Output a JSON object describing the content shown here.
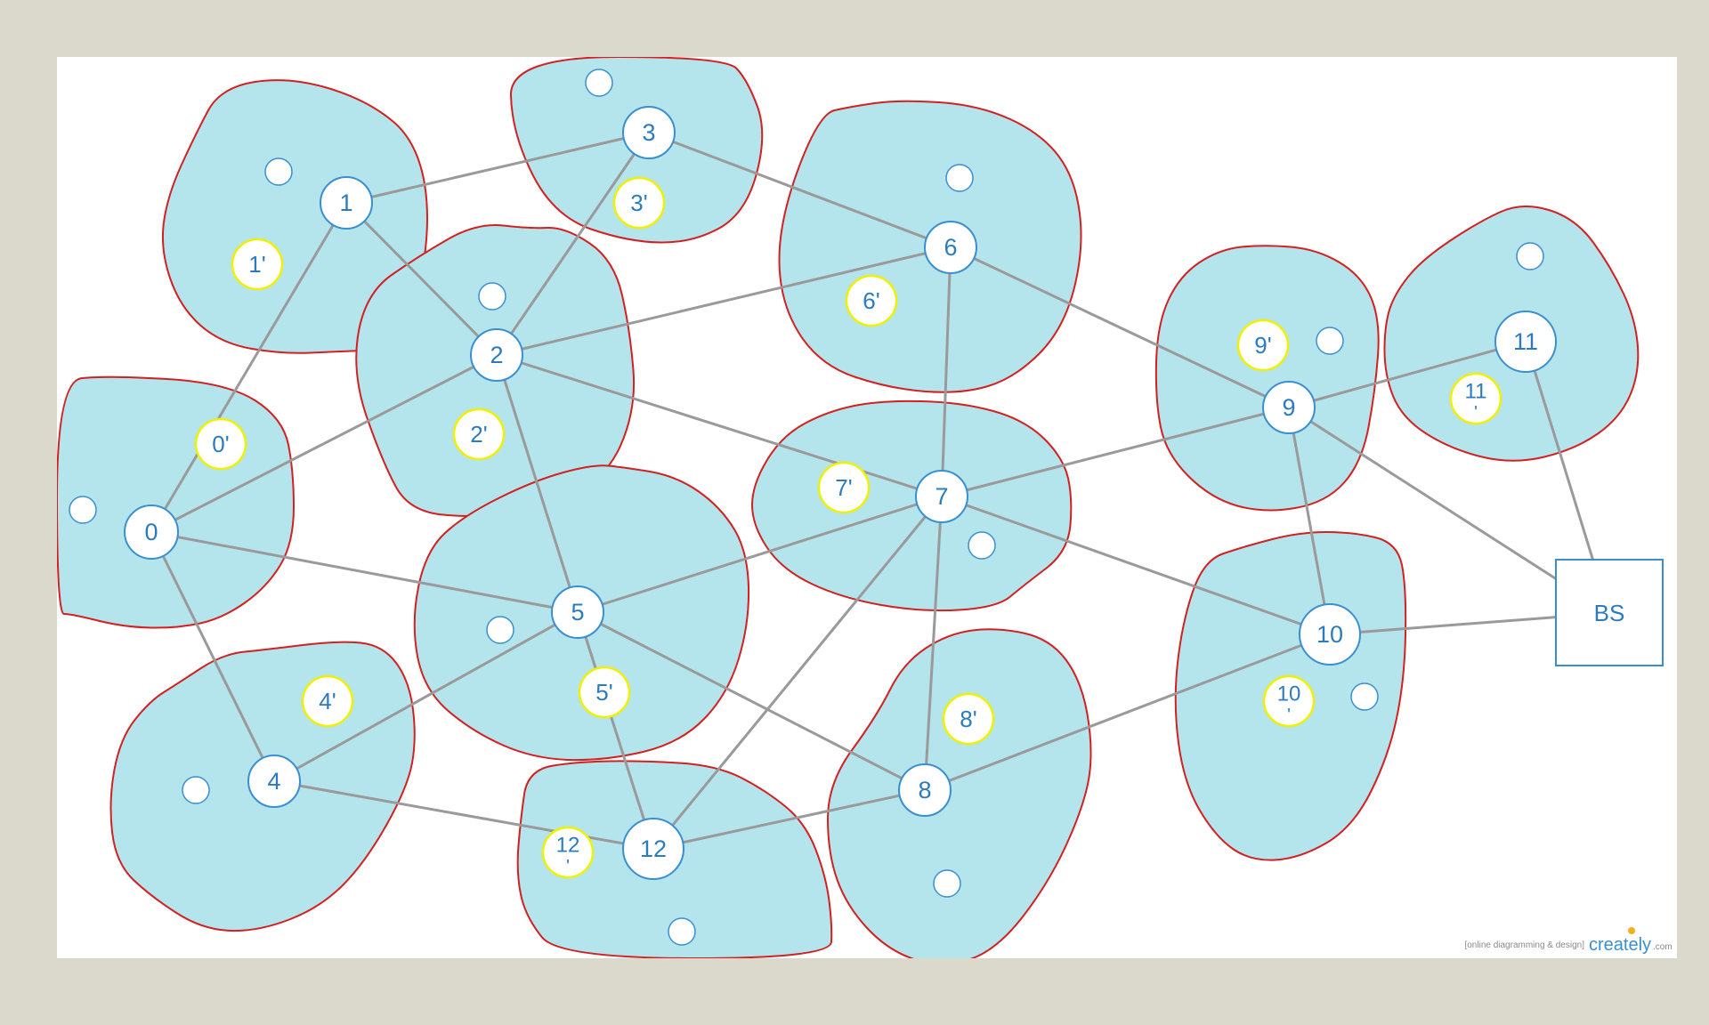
{
  "colors": {
    "background": "#dad9cc",
    "canvas": "#ffffff",
    "region_fill": "#b4e4ec",
    "region_stroke": "#d32020",
    "node_stroke": "#3a8fd0",
    "node_fill": "#ffffff",
    "node_text": "#2c7cbd",
    "prime_stroke": "#f0f000",
    "edge": "#9a9a9a"
  },
  "nodes": [
    {
      "id": "0",
      "label": "0"
    },
    {
      "id": "1",
      "label": "1"
    },
    {
      "id": "2",
      "label": "2"
    },
    {
      "id": "3",
      "label": "3"
    },
    {
      "id": "4",
      "label": "4"
    },
    {
      "id": "5",
      "label": "5"
    },
    {
      "id": "6",
      "label": "6"
    },
    {
      "id": "7",
      "label": "7"
    },
    {
      "id": "8",
      "label": "8"
    },
    {
      "id": "9",
      "label": "9"
    },
    {
      "id": "10",
      "label": "10"
    },
    {
      "id": "11",
      "label": "11"
    },
    {
      "id": "12",
      "label": "12"
    }
  ],
  "prime_nodes": [
    {
      "label": "0'"
    },
    {
      "label": "1'"
    },
    {
      "label": "2'"
    },
    {
      "label": "3'"
    },
    {
      "label": "4'"
    },
    {
      "label": "5'"
    },
    {
      "label": "6'"
    },
    {
      "label": "7'"
    },
    {
      "label": "8'"
    },
    {
      "label": "9'"
    },
    {
      "label": "10 '"
    },
    {
      "label": "11 '"
    },
    {
      "label": "12 '"
    }
  ],
  "base_station": {
    "label": "BS"
  },
  "edges": [
    [
      "0",
      "1"
    ],
    [
      "0",
      "2"
    ],
    [
      "0",
      "5"
    ],
    [
      "0",
      "4"
    ],
    [
      "1",
      "3"
    ],
    [
      "1",
      "2"
    ],
    [
      "2",
      "3"
    ],
    [
      "2",
      "6"
    ],
    [
      "2",
      "7"
    ],
    [
      "2",
      "5"
    ],
    [
      "3",
      "6"
    ],
    [
      "4",
      "5"
    ],
    [
      "4",
      "12"
    ],
    [
      "5",
      "7"
    ],
    [
      "5",
      "8"
    ],
    [
      "5",
      "12"
    ],
    [
      "6",
      "7"
    ],
    [
      "6",
      "9"
    ],
    [
      "7",
      "9"
    ],
    [
      "7",
      "10"
    ],
    [
      "7",
      "12"
    ],
    [
      "7",
      "8"
    ],
    [
      "8",
      "12"
    ],
    [
      "8",
      "10"
    ],
    [
      "9",
      "11"
    ],
    [
      "9",
      "10"
    ],
    [
      "9",
      "BS"
    ],
    [
      "10",
      "BS"
    ],
    [
      "11",
      "BS"
    ]
  ],
  "watermark": {
    "tagline": "[online diagramming & design]",
    "brand": "creately",
    "suffix": ".com"
  }
}
